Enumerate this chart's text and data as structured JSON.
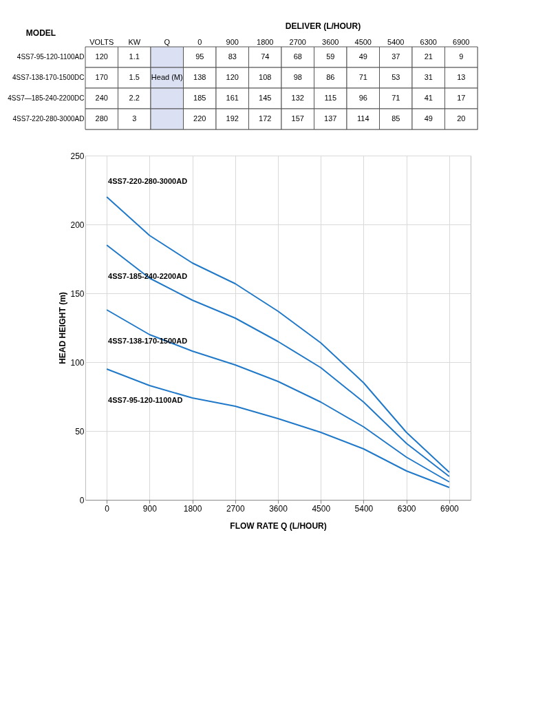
{
  "chart_data": [
    {
      "type": "other",
      "xlabel": "DELIVER (L/HOUR)",
      "ylabel": "MODEL",
      "data_labels": true,
      "categories": [
        "VOLTS",
        "KW",
        "Q",
        "0",
        "900",
        "1800",
        "2700",
        "3600",
        "4500",
        "5400",
        "6300",
        "6900"
      ],
      "series": [
        {
          "name": "4SS7-95-120-1100AD",
          "values": [
            120,
            1.1,
            null,
            95,
            83,
            74,
            68,
            59,
            49,
            37,
            21,
            9
          ]
        },
        {
          "name": "4SS7-138-170-1500DC",
          "values": [
            170,
            1.5,
            null,
            138,
            120,
            108,
            98,
            86,
            71,
            53,
            31,
            13
          ]
        },
        {
          "name": "4SS7—185-240-2200DC",
          "values": [
            240,
            2.2,
            null,
            185,
            161,
            145,
            132,
            115,
            96,
            71,
            41,
            17
          ]
        },
        {
          "name": "4SS7-220-280-3000AD",
          "values": [
            280,
            3,
            null,
            220,
            192,
            172,
            157,
            137,
            114,
            85,
            49,
            20
          ]
        }
      ],
      "annotations": [
        "Head (M)"
      ]
    },
    {
      "type": "line",
      "xlabel": "FLOW RATE Q (L/HOUR)",
      "ylabel": "HEAD HEIGHT (m)",
      "categories": [
        "0",
        "900",
        "1800",
        "2700",
        "3600",
        "4500",
        "5400",
        "6300",
        "6900"
      ],
      "ylim": [
        0,
        250
      ],
      "yticks": [
        0,
        50,
        100,
        150,
        200,
        250
      ],
      "grid": true,
      "legend": false,
      "series": [
        {
          "name": "4SS7-95-120-1100AD",
          "color": "#1f78c8",
          "values": [
            95,
            83,
            74,
            68,
            59,
            49,
            37,
            21,
            9
          ]
        },
        {
          "name": "4SS7-138-170-1500AD",
          "color": "#1f78c8",
          "values": [
            138,
            120,
            108,
            98,
            86,
            71,
            53,
            31,
            13
          ]
        },
        {
          "name": "4SS7-185-240-2200AD",
          "color": "#1f78c8",
          "values": [
            185,
            161,
            145,
            132,
            115,
            96,
            71,
            41,
            17
          ]
        },
        {
          "name": "4SS7-220-280-3000AD",
          "color": "#1f78c8",
          "values": [
            220,
            192,
            172,
            157,
            137,
            114,
            85,
            49,
            20
          ]
        }
      ]
    }
  ]
}
